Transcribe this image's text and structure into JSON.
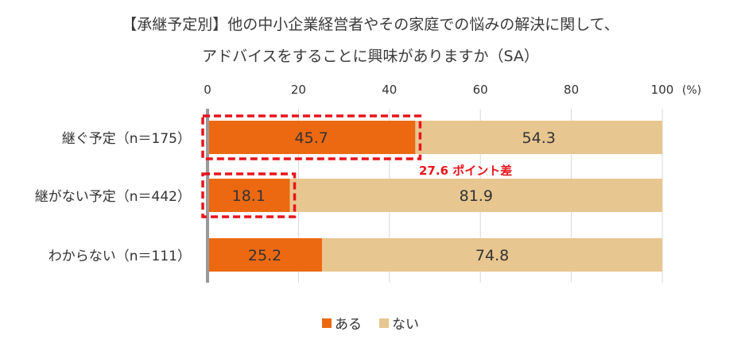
{
  "title": {
    "line1": "【承継予定別】他の中小企業経営者やその家庭での悩みの解決に関して、",
    "line2": "アドバイスをすることに興味がありますか（SA）"
  },
  "chart_data": {
    "type": "bar",
    "orientation": "horizontal",
    "stacked": true,
    "categories": [
      "継ぐ予定（n＝175）",
      "継がない予定（n＝442）",
      "わからない（n＝111）"
    ],
    "series": [
      {
        "name": "ある",
        "values": [
          45.7,
          18.1,
          25.2
        ],
        "color": "#ec6912"
      },
      {
        "name": "ない",
        "values": [
          54.3,
          81.9,
          74.8
        ],
        "color": "#e8c690"
      }
    ],
    "xlim": [
      0,
      100
    ],
    "xticks": [
      "0",
      "20",
      "40",
      "60",
      "80",
      "100"
    ],
    "unit_label": "(%)",
    "grid": true,
    "legend_position": "bottom",
    "annotation": {
      "text": "27.6 ポイント差",
      "color": "#e8141b"
    }
  }
}
